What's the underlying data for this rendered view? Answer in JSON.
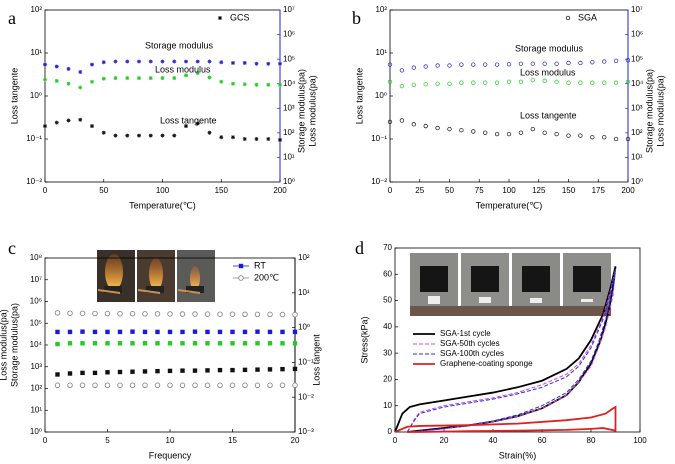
{
  "chart_data": [
    {
      "type": "scatter",
      "label": "a",
      "sample": "GCS",
      "sample_marker": "star",
      "legend": "inline",
      "xlabel": "Temperature(℃)",
      "ylabels": [
        {
          "text": "Loss tangente",
          "color": "#000000"
        }
      ],
      "y2labels": [
        {
          "text": "Storage modulus(pa)",
          "color": "#2222cc"
        },
        {
          "text": "Loss modulus(pa)",
          "color": "#22cc22"
        }
      ],
      "y2color": "#2222cc",
      "x": [
        0,
        10,
        20,
        30,
        40,
        50,
        60,
        70,
        80,
        90,
        100,
        110,
        120,
        130,
        140,
        150,
        160,
        170,
        180,
        190,
        200
      ],
      "xlim": [
        0,
        200
      ],
      "xticks": [
        0,
        50,
        100,
        150,
        200
      ],
      "ylim": [
        0.01,
        100
      ],
      "ylog": true,
      "yticks": [
        {
          "value": 0.01,
          "label": "10⁻²"
        },
        {
          "value": 0.1,
          "label": "10⁻¹"
        },
        {
          "value": 1,
          "label": "10⁰"
        },
        {
          "value": 10,
          "label": "10¹"
        },
        {
          "value": 100,
          "label": "10²"
        }
      ],
      "y2lim": [
        1,
        10000000
      ],
      "y2log": true,
      "y2ticks": [
        {
          "value": 1,
          "label": "10⁰"
        },
        {
          "value": 10,
          "label": "10¹"
        },
        {
          "value": 100,
          "label": "10²"
        },
        {
          "value": 1000,
          "label": "10³"
        },
        {
          "value": 10000,
          "label": "10⁴"
        },
        {
          "value": 100000,
          "label": "10⁵"
        },
        {
          "value": 1000000,
          "label": "10⁶"
        },
        {
          "value": 10000000,
          "label": "10⁷"
        }
      ],
      "series": [
        {
          "name": "Storage modulus",
          "color": "#2222cc",
          "axis": "y2",
          "marker": "star",
          "values": [
            60000,
            50000,
            40000,
            30000,
            60000,
            75000,
            80000,
            80000,
            80000,
            80000,
            80000,
            80000,
            80000,
            80000,
            80000,
            75000,
            70000,
            70000,
            65000,
            65000,
            65000
          ]
        },
        {
          "name": "Loss modulus",
          "color": "#22cc22",
          "axis": "y2",
          "marker": "star",
          "values": [
            15000,
            13000,
            10000,
            7000,
            12000,
            16000,
            17000,
            17000,
            17000,
            17000,
            17000,
            17000,
            22000,
            27000,
            18000,
            12000,
            10000,
            9500,
            9000,
            9000,
            9000
          ]
        },
        {
          "name": "Loss tangente",
          "color": "#111111",
          "marker": "star",
          "values": [
            0.2,
            0.24,
            0.27,
            0.28,
            0.2,
            0.14,
            0.12,
            0.12,
            0.12,
            0.12,
            0.12,
            0.12,
            0.2,
            0.23,
            0.14,
            0.11,
            0.11,
            0.1,
            0.1,
            0.1,
            0.095
          ]
        }
      ]
    },
    {
      "type": "scatter",
      "label": "b",
      "sample": "SGA",
      "sample_marker": "circle",
      "legend": "inline",
      "xlabel": "Temperature(℃)",
      "ylabels": [
        {
          "text": "Loss tangente",
          "color": "#000000"
        }
      ],
      "y2labels": [
        {
          "text": "Storage modulus(pa)",
          "color": "#2222cc"
        },
        {
          "text": "Loss modulus(pa)",
          "color": "#22cc22"
        }
      ],
      "y2color": "#2222cc",
      "x": [
        0,
        10,
        20,
        30,
        40,
        50,
        60,
        70,
        80,
        90,
        100,
        110,
        120,
        130,
        140,
        150,
        160,
        170,
        180,
        190,
        200
      ],
      "xlim": [
        0,
        200
      ],
      "xticks": [
        0,
        25,
        50,
        75,
        100,
        125,
        150,
        175,
        200
      ],
      "ylim": [
        0.01,
        100
      ],
      "ylog": true,
      "yticks": [
        {
          "value": 0.01,
          "label": "10⁻²"
        },
        {
          "value": 0.1,
          "label": "10⁻¹"
        },
        {
          "value": 1,
          "label": "10⁰"
        },
        {
          "value": 10,
          "label": "10¹"
        },
        {
          "value": 100,
          "label": "10²"
        }
      ],
      "y2lim": [
        1,
        10000000
      ],
      "y2log": true,
      "y2ticks": [
        {
          "value": 1,
          "label": "10⁰"
        },
        {
          "value": 10,
          "label": "10¹"
        },
        {
          "value": 100,
          "label": "10²"
        },
        {
          "value": 1000,
          "label": "10³"
        },
        {
          "value": 10000,
          "label": "10⁴"
        },
        {
          "value": 100000,
          "label": "10⁵"
        },
        {
          "value": 1000000,
          "label": "10⁶"
        },
        {
          "value": 10000000,
          "label": "10⁷"
        }
      ],
      "series": [
        {
          "name": "Storage modulus",
          "color": "#2222cc",
          "axis": "y2",
          "marker": "circle",
          "values": [
            60000,
            35000,
            45000,
            50000,
            55000,
            55000,
            60000,
            60000,
            60000,
            60000,
            62000,
            65000,
            65000,
            65000,
            65000,
            70000,
            70000,
            75000,
            80000,
            85000,
            90000
          ]
        },
        {
          "name": "Loss modulus",
          "color": "#22cc22",
          "axis": "y2",
          "marker": "circle",
          "values": [
            12000,
            8000,
            9000,
            9500,
            10000,
            10000,
            11000,
            11000,
            11000,
            11000,
            12000,
            12000,
            14000,
            13000,
            12000,
            11000,
            11000,
            11000,
            11000,
            11000,
            12000
          ]
        },
        {
          "name": "Loss tangente",
          "color": "#111111",
          "marker": "circle",
          "values": [
            0.25,
            0.27,
            0.22,
            0.2,
            0.18,
            0.17,
            0.16,
            0.15,
            0.14,
            0.13,
            0.13,
            0.14,
            0.17,
            0.14,
            0.13,
            0.12,
            0.12,
            0.11,
            0.11,
            0.1,
            0.1
          ]
        }
      ]
    },
    {
      "type": "scatter",
      "label": "c",
      "legend": "top-right",
      "xlabel": "Frequency",
      "ylabels": [
        {
          "text": "Loss modulus(pa)",
          "color": "#2222cc"
        },
        {
          "text": "Storage modulus(pa)",
          "color": "#22cc22"
        }
      ],
      "y2labels": [
        {
          "text": "Loss tangent",
          "color": "#000000"
        }
      ],
      "y2color": "#000000",
      "x": [
        1,
        2,
        3,
        4,
        5,
        6,
        7,
        8,
        9,
        10,
        11,
        12,
        13,
        14,
        15,
        16,
        17,
        18,
        19,
        20
      ],
      "xlim": [
        0,
        20
      ],
      "xticks": [
        0,
        5,
        10,
        15,
        20
      ],
      "ylim": [
        1,
        100000000
      ],
      "ylog": true,
      "yticks": [
        {
          "value": 1,
          "label": "10⁰"
        },
        {
          "value": 10,
          "label": "10¹"
        },
        {
          "value": 100,
          "label": "10²"
        },
        {
          "value": 1000,
          "label": "10³"
        },
        {
          "value": 10000,
          "label": "10⁴"
        },
        {
          "value": 100000,
          "label": "10⁵"
        },
        {
          "value": 1000000,
          "label": "10⁶"
        },
        {
          "value": 10000000,
          "label": "10⁷"
        },
        {
          "value": 100000000,
          "label": "10⁸"
        }
      ],
      "y2lim": [
        0.001,
        100
      ],
      "y2log": true,
      "y2ticks": [
        {
          "value": 0.001,
          "label": "10⁻³"
        },
        {
          "value": 0.01,
          "label": "10⁻²"
        },
        {
          "value": 0.1,
          "label": "10⁻¹"
        },
        {
          "value": 1,
          "label": "10⁰"
        },
        {
          "value": 10,
          "label": "10¹"
        },
        {
          "value": 100,
          "label": "10²"
        }
      ],
      "series": [
        {
          "name": "RT",
          "color": "#1a1adb",
          "marker": "square",
          "values": [
            40000,
            40000,
            41000,
            40000,
            40000,
            40000,
            41000,
            40000,
            40000,
            40000,
            40000,
            41000,
            40000,
            40000,
            40000,
            40000,
            41000,
            40000,
            40000,
            40000
          ]
        },
        {
          "color": "#22cc22",
          "marker": "square",
          "values": [
            11000,
            12000,
            12000,
            12000,
            12000,
            12000,
            12000,
            12000,
            12000,
            12000,
            12000,
            12000,
            12000,
            12000,
            12000,
            12000,
            12000,
            12000,
            12000,
            12000
          ]
        },
        {
          "color": "#111111",
          "axis": "y2",
          "marker": "square",
          "values": [
            0.045,
            0.048,
            0.05,
            0.05,
            0.052,
            0.053,
            0.054,
            0.055,
            0.056,
            0.057,
            0.058,
            0.058,
            0.059,
            0.06,
            0.06,
            0.061,
            0.062,
            0.063,
            0.064,
            0.065
          ]
        },
        {
          "name": "200℃",
          "color": "#888888",
          "marker": "ocircle",
          "values": [
            300000,
            290000,
            285000,
            280000,
            280000,
            275000,
            275000,
            270000,
            270000,
            268000,
            265000,
            265000,
            262000,
            260000,
            260000,
            258000,
            255000,
            255000,
            252000,
            250000
          ]
        },
        {
          "color": "#888888",
          "axis": "y2",
          "marker": "ocircle",
          "values": [
            0.022,
            0.022,
            0.022,
            0.022,
            0.022,
            0.022,
            0.022,
            0.022,
            0.022,
            0.022,
            0.022,
            0.022,
            0.022,
            0.022,
            0.022,
            0.022,
            0.022,
            0.022,
            0.022,
            0.022
          ]
        }
      ]
    },
    {
      "type": "line",
      "label": "d",
      "legend": "middle-left",
      "xlabel": "Strain(%)",
      "ylabels": [
        {
          "text": "Stress(kPa)",
          "color": "#000000"
        }
      ],
      "xlim": [
        0,
        100
      ],
      "xticks": [
        0,
        20,
        40,
        60,
        80,
        100
      ],
      "ylim": [
        0,
        70
      ],
      "yticks": [
        0,
        10,
        20,
        30,
        40,
        50,
        60,
        70
      ],
      "series": [
        {
          "name": "SGA-1st cycle",
          "color": "#000000",
          "marker": "line",
          "x": [
            0,
            3,
            6,
            10,
            20,
            30,
            40,
            50,
            60,
            70,
            75,
            80,
            85,
            88,
            90,
            89,
            87,
            84,
            80,
            75,
            70,
            60,
            50,
            40,
            30,
            20,
            10,
            5
          ],
          "values": [
            0,
            7,
            9.5,
            10.5,
            12,
            13.5,
            15,
            17,
            19.5,
            24,
            28,
            35,
            45,
            55,
            63,
            55,
            45,
            35,
            26,
            19,
            14,
            9,
            6,
            4,
            2.5,
            1.5,
            0.5,
            0
          ]
        },
        {
          "name": "SGA-50th cycles",
          "color": "#e040e0",
          "marker": "line",
          "dash": true,
          "x": [
            5,
            8,
            10,
            20,
            30,
            40,
            50,
            60,
            70,
            75,
            80,
            85,
            88,
            90,
            89,
            86,
            83,
            80,
            75,
            70,
            60,
            50,
            40,
            30,
            20,
            10,
            7
          ],
          "values": [
            0,
            5,
            7.5,
            10,
            11.5,
            13,
            15,
            18,
            22,
            26,
            33,
            44,
            54,
            62,
            52,
            40,
            32,
            25,
            19,
            14,
            9,
            6,
            4,
            2.5,
            1.2,
            0.3,
            0
          ]
        },
        {
          "name": "SGA-100th cycles",
          "color": "#2233dd",
          "marker": "line",
          "dash": true,
          "x": [
            5,
            8,
            10,
            20,
            30,
            40,
            50,
            60,
            70,
            75,
            80,
            85,
            88,
            90,
            89,
            86,
            83,
            80,
            75,
            70,
            60,
            50,
            40,
            30,
            20,
            10,
            7
          ],
          "values": [
            0,
            4.5,
            7,
            9.5,
            11,
            12.5,
            14.5,
            17,
            21,
            25,
            32,
            43,
            53,
            62,
            54,
            43,
            34,
            27,
            20,
            15,
            10,
            6.5,
            4.2,
            2.6,
            1.3,
            0.4,
            0
          ]
        },
        {
          "name": "Graphene-coating sponge",
          "color": "#e02020",
          "marker": "line",
          "x": [
            0,
            5,
            10,
            30,
            50,
            70,
            80,
            86,
            89,
            90,
            90,
            85,
            80,
            70,
            50,
            30,
            10,
            5
          ],
          "values": [
            0,
            2,
            2.3,
            2.6,
            3.2,
            4.5,
            5.5,
            7,
            9,
            9.5,
            0.5,
            1.5,
            1.2,
            0.8,
            0.5,
            0.3,
            0,
            0
          ]
        }
      ]
    }
  ]
}
